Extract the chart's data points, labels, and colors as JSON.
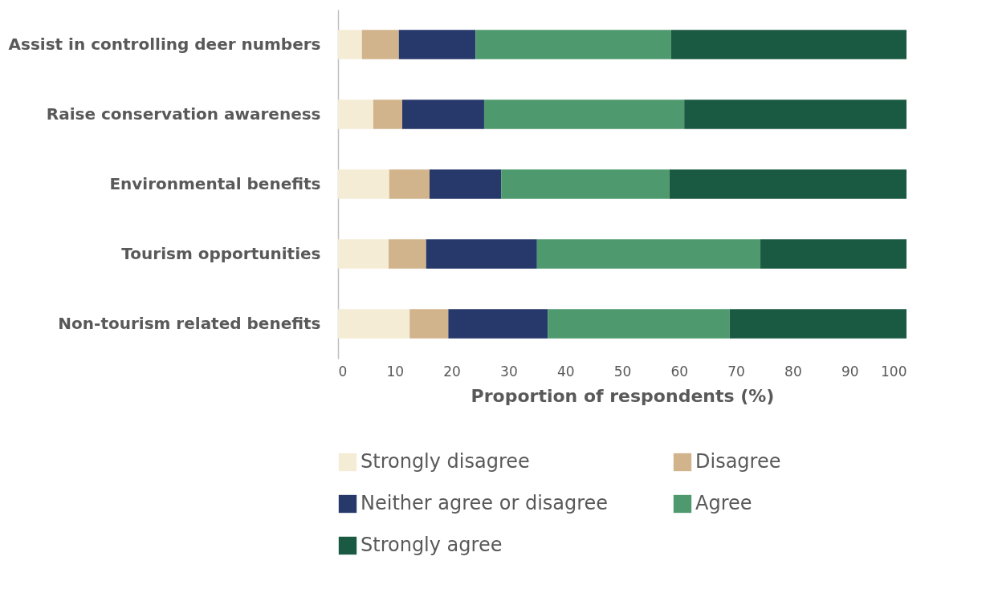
{
  "chart_data": {
    "type": "bar",
    "orientation": "horizontal",
    "stacked": true,
    "xlabel": "Proportion of respondents (%)",
    "categories": [
      "Assist in controlling deer numbers",
      "Raise conservation awareness",
      "Environmental benefits",
      "Tourism opportunities",
      "Non-tourism related benefits"
    ],
    "series": [
      {
        "name": "Strongly disagree",
        "color": "#f5ecd5",
        "values": [
          4.2,
          6.2,
          9.0,
          8.9,
          12.6
        ]
      },
      {
        "name": "Disagree",
        "color": "#d2b48c",
        "values": [
          6.5,
          5.1,
          7.1,
          6.6,
          6.8
        ]
      },
      {
        "name": "Neither agree or disagree",
        "color": "#27386b",
        "values": [
          13.5,
          14.4,
          12.6,
          19.5,
          17.5
        ]
      },
      {
        "name": "Agree",
        "color": "#4e9a6e",
        "values": [
          34.4,
          35.2,
          29.6,
          39.3,
          32.0
        ]
      },
      {
        "name": "Strongly agree",
        "color": "#1a5a42",
        "values": [
          41.4,
          39.1,
          41.7,
          25.7,
          31.1
        ]
      }
    ],
    "xlim": [
      0,
      100
    ],
    "xticks": [
      0,
      10,
      20,
      30,
      40,
      50,
      60,
      70,
      80,
      90,
      100
    ],
    "grid": false,
    "legend": "bottom"
  }
}
